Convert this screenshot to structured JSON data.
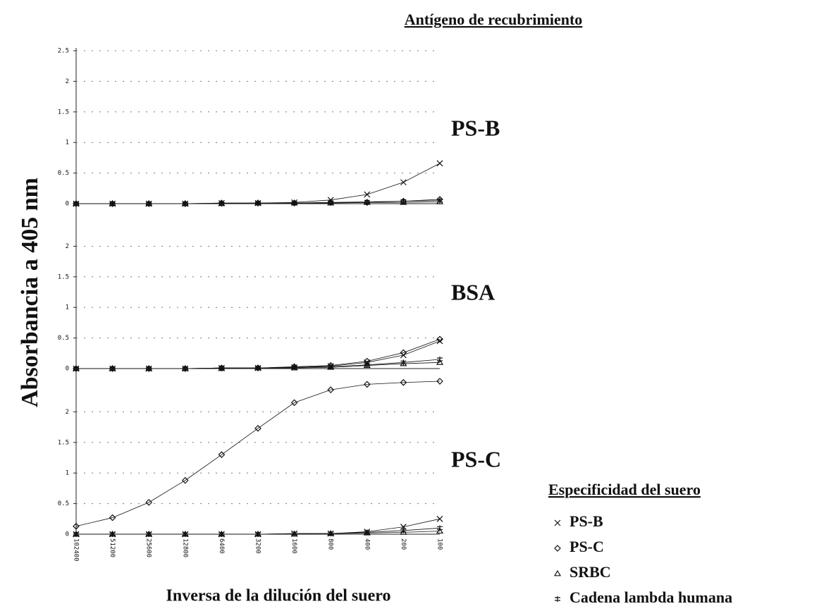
{
  "figure": {
    "title": "Antígeno de recubrimiento",
    "y_label": "Absorbancia a 405 nm",
    "x_label": "Inversa de la dilución del suero",
    "legend_title": "Especificidad del suero"
  },
  "chart_data": [
    {
      "type": "line",
      "title": "PS-B",
      "categories": [
        "102400",
        "51200",
        "25600",
        "12800",
        "6400",
        "3200",
        "1600",
        "800",
        "400",
        "200",
        "100"
      ],
      "ylim": [
        0,
        2.5
      ],
      "yticks": [
        0,
        0.5,
        1,
        1.5,
        2,
        2.5
      ],
      "grid": true,
      "series": [
        {
          "name": "PS-B",
          "color": "#111",
          "marker": "x",
          "values": [
            0,
            0,
            0,
            0,
            0.01,
            0.01,
            0.02,
            0.06,
            0.15,
            0.35,
            0.66
          ]
        },
        {
          "name": "PS-C",
          "color": "#111",
          "marker": "diamond",
          "values": [
            0,
            0,
            0,
            0,
            0.01,
            0.01,
            0.01,
            0.02,
            0.02,
            0.04,
            0.07
          ]
        },
        {
          "name": "SRBC",
          "color": "#111",
          "marker": "triangle",
          "values": [
            0,
            0,
            0,
            0,
            0,
            0.01,
            0.01,
            0.01,
            0.02,
            0.02,
            0.03
          ]
        },
        {
          "name": "Cadena lambda humana",
          "color": "#111",
          "marker": "bar",
          "values": [
            0,
            0,
            0,
            0,
            0,
            0.01,
            0.01,
            0.02,
            0.03,
            0.04,
            0.05
          ]
        }
      ]
    },
    {
      "type": "line",
      "title": "BSA",
      "categories": [
        "102400",
        "51200",
        "25600",
        "12800",
        "6400",
        "3200",
        "1600",
        "800",
        "400",
        "200",
        "100"
      ],
      "ylim": [
        0,
        2.5
      ],
      "yticks": [
        0,
        0.5,
        1,
        1.5,
        2
      ],
      "grid": true,
      "series": [
        {
          "name": "PS-B",
          "color": "#111",
          "marker": "x",
          "values": [
            0,
            0,
            0,
            0,
            0.01,
            0.01,
            0.02,
            0.04,
            0.1,
            0.22,
            0.45
          ]
        },
        {
          "name": "PS-C",
          "color": "#111",
          "marker": "diamond",
          "values": [
            0,
            0,
            0,
            0,
            0.01,
            0.01,
            0.03,
            0.05,
            0.12,
            0.26,
            0.48
          ]
        },
        {
          "name": "SRBC",
          "color": "#111",
          "marker": "triangle",
          "values": [
            0,
            0,
            0,
            0,
            0,
            0.01,
            0.01,
            0.02,
            0.05,
            0.08,
            0.1
          ]
        },
        {
          "name": "Cadena lambda humana",
          "color": "#111",
          "marker": "bar",
          "values": [
            0,
            0,
            0,
            0,
            0.01,
            0.01,
            0.02,
            0.03,
            0.06,
            0.1,
            0.15
          ]
        }
      ]
    },
    {
      "type": "line",
      "title": "PS-C",
      "categories": [
        "102400",
        "51200",
        "25600",
        "12800",
        "6400",
        "3200",
        "1600",
        "800",
        "400",
        "200",
        "100"
      ],
      "ylim": [
        0,
        2.5
      ],
      "yticks": [
        0,
        0.5,
        1,
        1.5,
        2
      ],
      "grid": true,
      "series": [
        {
          "name": "PS-B",
          "color": "#111",
          "marker": "x",
          "values": [
            0,
            0,
            0,
            0,
            0,
            0,
            0.01,
            0.01,
            0.04,
            0.12,
            0.25
          ]
        },
        {
          "name": "PS-C",
          "color": "#111",
          "marker": "diamond",
          "values": [
            0.13,
            0.27,
            0.52,
            0.88,
            1.3,
            1.73,
            2.15,
            2.36,
            2.45,
            2.48,
            2.5
          ]
        },
        {
          "name": "SRBC",
          "color": "#111",
          "marker": "triangle",
          "values": [
            0,
            0,
            0,
            0,
            0,
            0,
            0,
            0.01,
            0.02,
            0.03,
            0.05
          ]
        },
        {
          "name": "Cadena lambda humana",
          "color": "#111",
          "marker": "bar",
          "values": [
            0,
            0,
            0,
            0,
            0,
            0,
            0.01,
            0.01,
            0.03,
            0.06,
            0.1
          ]
        }
      ]
    }
  ]
}
